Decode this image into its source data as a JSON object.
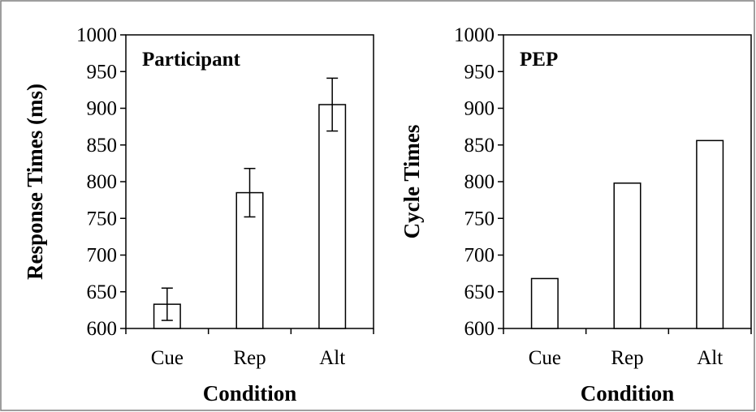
{
  "chart_data": [
    {
      "type": "bar",
      "title": "Participant",
      "categories": [
        "Cue",
        "Rep",
        "Alt"
      ],
      "values": [
        633,
        785,
        905
      ],
      "error": [
        22,
        33,
        36
      ],
      "xlabel": "Condition",
      "ylabel": "Response Times (ms)",
      "ylim": [
        600,
        1000
      ],
      "yticks": [
        600,
        650,
        700,
        750,
        800,
        850,
        900,
        950,
        1000
      ],
      "grid": false,
      "legend": "none"
    },
    {
      "type": "bar",
      "title": "PEP",
      "categories": [
        "Cue",
        "Rep",
        "Alt"
      ],
      "values": [
        668,
        798,
        856
      ],
      "xlabel": "Condition",
      "ylabel": "Cycle Times",
      "ylim": [
        600,
        1000
      ],
      "yticks": [
        600,
        650,
        700,
        750,
        800,
        850,
        900,
        950,
        1000
      ],
      "grid": false,
      "legend": "none"
    }
  ],
  "colors": {
    "bar_fill": "#ffffff",
    "stroke": "#000000",
    "frame": "#7f7f7f"
  }
}
